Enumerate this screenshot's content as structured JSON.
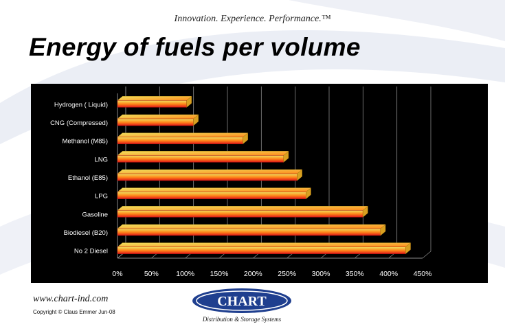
{
  "header": {
    "tagline": "Innovation. Experience. Performance.™",
    "title": "Energy of fuels per volume"
  },
  "footer": {
    "website": "www.chart-ind.com",
    "copyright": "Copyright © Claus Emmer Jun-08",
    "logo_text": "CHART",
    "logo_subtitle": "Distribution & Storage Systems"
  },
  "colors": {
    "chart_background": "#000000",
    "gridline": "#8a8a8a",
    "bar_top": "#f0e060",
    "bar_mid": "#ff8a1a",
    "bar_bottom": "#e01818",
    "logo_blue": "#1f3f8f"
  },
  "chart_data": {
    "type": "bar",
    "orientation": "horizontal",
    "style": "3d",
    "categories": [
      "Hydrogen ( Liquid)",
      "CNG (Compressed)",
      "Methanol (M85)",
      "LNG",
      "Ethanol (E85)",
      "LPG",
      "Gasoline",
      "Biodiesel (B20)",
      "No 2 Diesel"
    ],
    "values": [
      102,
      112,
      185,
      245,
      265,
      278,
      362,
      388,
      425
    ],
    "x_ticks": [
      "0%",
      "50%",
      "100%",
      "150%",
      "200%",
      "250%",
      "300%",
      "350%",
      "400%",
      "450%"
    ],
    "xlim": [
      0,
      450
    ],
    "grid": true,
    "legend": "none"
  }
}
